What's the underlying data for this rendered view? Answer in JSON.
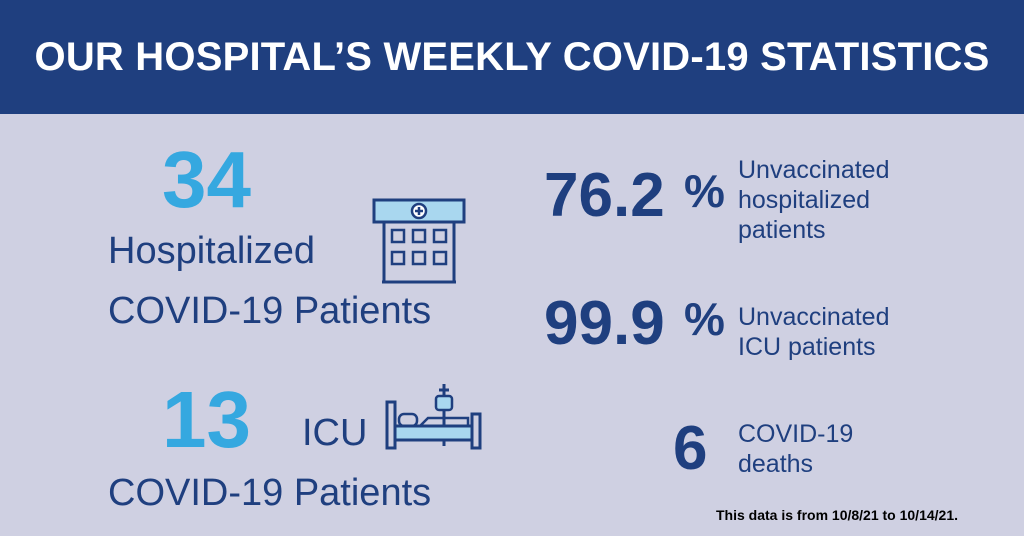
{
  "header": {
    "title": "OUR HOSPITAL’S WEEKLY COVID-19 STATISTICS"
  },
  "hospitalized": {
    "number": "34",
    "label_line1": "Hospitalized",
    "label_line2": "COVID-19 Patients",
    "icon": "hospital-building-icon"
  },
  "icu": {
    "number": "13",
    "label_inline": "ICU",
    "label_line2": "COVID-19 Patients",
    "icon": "hospital-bed-icon"
  },
  "stats": [
    {
      "value": "76.2",
      "unit": "%",
      "line1": "Unvaccinated",
      "line2": "hospitalized",
      "line3": "patients"
    },
    {
      "value": "99.9",
      "unit": "%",
      "line1": "Unvaccinated",
      "line2": "ICU patients"
    },
    {
      "value": "6",
      "line1": "COVID-19",
      "line2": "deaths"
    }
  ],
  "footnote": "This data is from 10/8/21 to 10/14/21.",
  "colors": {
    "header_bg": "#1f3f7f",
    "page_bg": "#cfd0e2",
    "accent_blue": "#35a8e0",
    "navy": "#1f3f7f"
  }
}
